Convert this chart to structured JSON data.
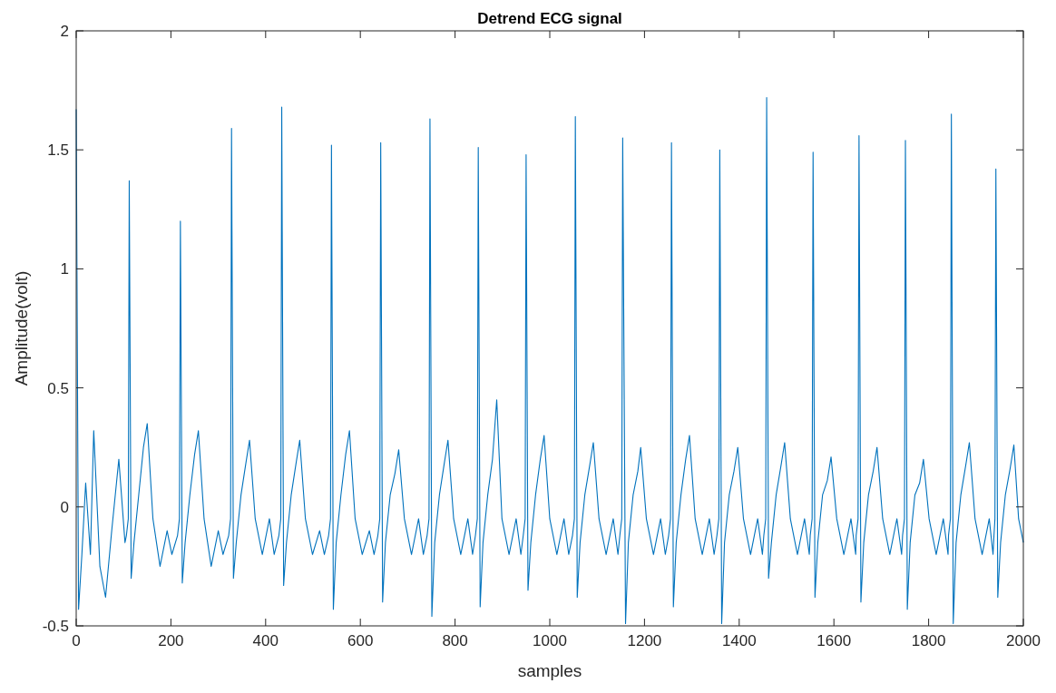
{
  "chart_data": {
    "type": "line",
    "title": "Detrend ECG signal",
    "xlabel": "samples",
    "ylabel": "Amplitude(volt)",
    "xlim": [
      0,
      2000
    ],
    "xticks": [
      0,
      200,
      400,
      600,
      800,
      1000,
      1200,
      1400,
      1600,
      1800,
      2000
    ],
    "ylim": [
      -0.5,
      2
    ],
    "yticks": [
      -0.5,
      0,
      0.5,
      1,
      1.5,
      2
    ],
    "grid": false,
    "marker": "none",
    "line_style": "solid",
    "series": [
      {
        "color": "#0072bd",
        "x": [
          0,
          5,
          12,
          20,
          30,
          37,
          50,
          62,
          75,
          90,
          103,
          106,
          110,
          112,
          116,
          122,
          132,
          142,
          150,
          162,
          177,
          192,
          202,
          214,
          218,
          220,
          224,
          230,
          240,
          250,
          258,
          270,
          285,
          300,
          310,
          322,
          326,
          328,
          332,
          338,
          348,
          358,
          366,
          378,
          393,
          408,
          418,
          428,
          432,
          434,
          438,
          444,
          454,
          464,
          472,
          484,
          499,
          514,
          524,
          533,
          537,
          539,
          543,
          549,
          559,
          569,
          577,
          589,
          604,
          619,
          629,
          637,
          641,
          643,
          647,
          653,
          663,
          673,
          681,
          693,
          708,
          723,
          733,
          741,
          745,
          747,
          751,
          757,
          767,
          777,
          785,
          797,
          812,
          827,
          837,
          843,
          847,
          849,
          853,
          859,
          869,
          879,
          888,
          899,
          914,
          929,
          939,
          944,
          948,
          950,
          954,
          960,
          970,
          980,
          988,
          1000,
          1015,
          1030,
          1040,
          1048,
          1052,
          1054,
          1058,
          1064,
          1074,
          1084,
          1092,
          1104,
          1119,
          1134,
          1144,
          1148,
          1152,
          1154,
          1160,
          1166,
          1176,
          1186,
          1192,
          1204,
          1219,
          1234,
          1244,
          1251,
          1255,
          1257,
          1261,
          1267,
          1277,
          1287,
          1295,
          1307,
          1322,
          1337,
          1347,
          1353,
          1357,
          1359,
          1363,
          1369,
          1379,
          1389,
          1397,
          1409,
          1424,
          1439,
          1449,
          1452,
          1456,
          1458,
          1462,
          1468,
          1478,
          1488,
          1496,
          1508,
          1523,
          1538,
          1548,
          1550,
          1554,
          1556,
          1560,
          1566,
          1576,
          1586,
          1594,
          1606,
          1621,
          1636,
          1646,
          1647,
          1651,
          1653,
          1657,
          1663,
          1673,
          1683,
          1691,
          1703,
          1718,
          1733,
          1743,
          1745,
          1749,
          1751,
          1755,
          1761,
          1771,
          1781,
          1789,
          1801,
          1816,
          1831,
          1841,
          1842,
          1846,
          1848,
          1852,
          1858,
          1868,
          1878,
          1886,
          1898,
          1913,
          1928,
          1936,
          1938,
          1940,
          1942,
          1946,
          1952,
          1962,
          1972,
          1980,
          1990,
          2000
        ],
        "values": [
          1.67,
          -0.43,
          -0.2,
          0.1,
          -0.2,
          0.32,
          -0.25,
          -0.38,
          -0.1,
          0.2,
          -0.15,
          -0.12,
          -0.05,
          1.37,
          -0.3,
          -0.15,
          0.05,
          0.25,
          0.35,
          -0.05,
          -0.25,
          -0.1,
          -0.2,
          -0.12,
          -0.05,
          1.2,
          -0.32,
          -0.15,
          0.05,
          0.22,
          0.32,
          -0.05,
          -0.25,
          -0.1,
          -0.2,
          -0.12,
          -0.05,
          1.59,
          -0.3,
          -0.15,
          0.05,
          0.18,
          0.28,
          -0.05,
          -0.2,
          -0.05,
          -0.2,
          -0.12,
          -0.05,
          1.68,
          -0.33,
          -0.15,
          0.05,
          0.18,
          0.28,
          -0.05,
          -0.2,
          -0.1,
          -0.2,
          -0.12,
          -0.05,
          1.52,
          -0.43,
          -0.15,
          0.05,
          0.22,
          0.32,
          -0.05,
          -0.2,
          -0.1,
          -0.2,
          -0.12,
          -0.05,
          1.53,
          -0.4,
          -0.15,
          0.05,
          0.14,
          0.24,
          -0.05,
          -0.2,
          -0.05,
          -0.2,
          -0.12,
          -0.05,
          1.63,
          -0.46,
          -0.15,
          0.05,
          0.18,
          0.28,
          -0.05,
          -0.2,
          -0.05,
          -0.2,
          -0.12,
          -0.05,
          1.51,
          -0.42,
          -0.15,
          0.05,
          0.2,
          0.45,
          -0.05,
          -0.2,
          -0.05,
          -0.2,
          -0.12,
          -0.05,
          1.48,
          -0.35,
          -0.15,
          0.05,
          0.2,
          0.3,
          -0.05,
          -0.2,
          -0.05,
          -0.2,
          -0.12,
          -0.05,
          1.64,
          -0.38,
          -0.15,
          0.05,
          0.17,
          0.27,
          -0.05,
          -0.2,
          -0.05,
          -0.2,
          -0.12,
          -0.05,
          1.55,
          -0.49,
          -0.15,
          0.05,
          0.15,
          0.25,
          -0.05,
          -0.2,
          -0.05,
          -0.2,
          -0.12,
          -0.05,
          1.53,
          -0.42,
          -0.15,
          0.05,
          0.2,
          0.3,
          -0.05,
          -0.2,
          -0.05,
          -0.2,
          -0.12,
          -0.05,
          1.5,
          -0.49,
          -0.15,
          0.05,
          0.15,
          0.25,
          -0.05,
          -0.2,
          -0.05,
          -0.2,
          -0.12,
          -0.05,
          1.72,
          -0.3,
          -0.15,
          0.05,
          0.17,
          0.27,
          -0.05,
          -0.2,
          -0.05,
          -0.2,
          -0.12,
          -0.05,
          1.49,
          -0.38,
          -0.15,
          0.05,
          0.11,
          0.21,
          -0.05,
          -0.2,
          -0.05,
          -0.2,
          -0.12,
          -0.05,
          1.56,
          -0.4,
          -0.15,
          0.05,
          0.15,
          0.25,
          -0.05,
          -0.2,
          -0.05,
          -0.2,
          -0.12,
          -0.05,
          1.54,
          -0.43,
          -0.15,
          0.05,
          0.1,
          0.2,
          -0.05,
          -0.2,
          -0.05,
          -0.2,
          -0.12,
          -0.05,
          1.65,
          -0.49,
          -0.15,
          0.05,
          0.17,
          0.27,
          -0.05,
          -0.2,
          -0.05,
          -0.2,
          -0.12,
          -0.05,
          1.42,
          -0.38,
          -0.15,
          0.05,
          0.16,
          0.26,
          -0.05,
          -0.15
        ]
      }
    ]
  }
}
